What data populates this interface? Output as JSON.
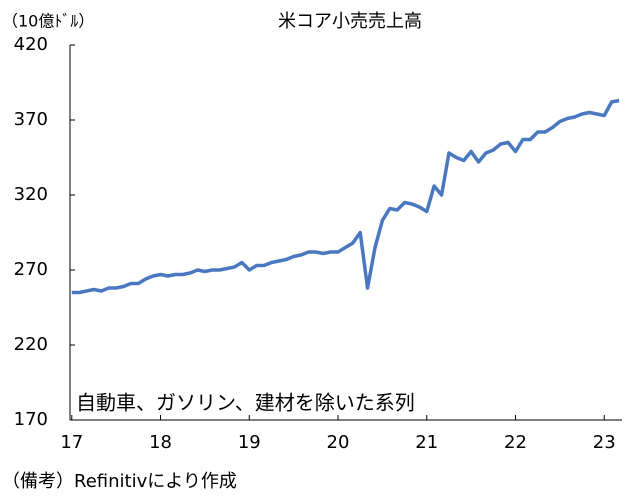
{
  "chart_data": {
    "type": "line",
    "title": "米コア小売売上高",
    "y_label": "（10億ﾄﾞﾙ）",
    "annotation": "自動車、ガソリン、建材を除いた系列",
    "note": "（備考）Refinitivにより作成",
    "x": [
      17,
      17.083,
      17.167,
      17.25,
      17.333,
      17.417,
      17.5,
      17.583,
      17.667,
      17.75,
      17.833,
      17.917,
      18,
      18.083,
      18.167,
      18.25,
      18.333,
      18.417,
      18.5,
      18.583,
      18.667,
      18.75,
      18.833,
      18.917,
      19,
      19.083,
      19.167,
      19.25,
      19.333,
      19.417,
      19.5,
      19.583,
      19.667,
      19.75,
      19.833,
      19.917,
      20,
      20.083,
      20.167,
      20.25,
      20.333,
      20.417,
      20.5,
      20.583,
      20.667,
      20.75,
      20.833,
      20.917,
      21,
      21.083,
      21.167,
      21.25,
      21.333,
      21.417,
      21.5,
      21.583,
      21.667,
      21.75,
      21.833,
      21.917,
      22,
      22.083,
      22.167,
      22.25,
      22.333,
      22.417,
      22.5,
      22.583,
      22.667,
      22.75,
      22.833,
      22.917,
      23,
      23.083,
      23.167
    ],
    "series": [
      {
        "color": "#4a78c0",
        "values": [
          255,
          255,
          256,
          257,
          256,
          258,
          258,
          259,
          261,
          261,
          264,
          266,
          267,
          266,
          267,
          267,
          268,
          270,
          269,
          270,
          270,
          271,
          272,
          275,
          270,
          273,
          273,
          275,
          276,
          277,
          279,
          280,
          282,
          282,
          281,
          282,
          282,
          285,
          288,
          295,
          258,
          285,
          303,
          311,
          310,
          315,
          314,
          312,
          309,
          326,
          320,
          348,
          345,
          343,
          349,
          342,
          348,
          350,
          354,
          355,
          349,
          357,
          357,
          362,
          362,
          365,
          369,
          371,
          372,
          374,
          375,
          374,
          373,
          382,
          383
        ]
      }
    ],
    "xlim": [
      16.98,
      23.2
    ],
    "xticks": [
      17,
      18,
      19,
      20,
      21,
      22,
      23
    ],
    "ylim": [
      170,
      420
    ],
    "yticks": [
      170,
      220,
      270,
      320,
      370,
      420
    ]
  }
}
